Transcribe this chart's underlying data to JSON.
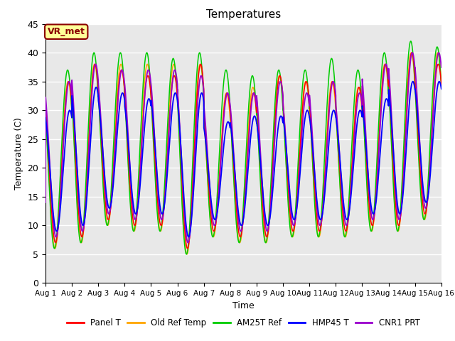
{
  "title": "Temperatures",
  "xlabel": "Time",
  "ylabel": "Temperature (C)",
  "ylim": [
    0,
    45
  ],
  "x_tick_labels": [
    "Aug 1",
    "Aug 2",
    "Aug 3",
    "Aug 4",
    "Aug 5",
    "Aug 6",
    "Aug 7",
    "Aug 8",
    "Aug 9",
    "Aug 10",
    "Aug 11",
    "Aug 12",
    "Aug 13",
    "Aug 14",
    "Aug 15",
    "Aug 16"
  ],
  "yticks": [
    0,
    5,
    10,
    15,
    20,
    25,
    30,
    35,
    40,
    45
  ],
  "annotation_text": "VR_met",
  "annotation_color": "#8B0000",
  "annotation_bg": "#FFFF99",
  "bg_color": "#E8E8E8",
  "panel_color": "#FF0000",
  "old_color": "#FFA500",
  "am25_color": "#00CC00",
  "hmp_color": "#0000FF",
  "cnr_color": "#9900CC",
  "n_days": 15,
  "pts_per_day": 300
}
